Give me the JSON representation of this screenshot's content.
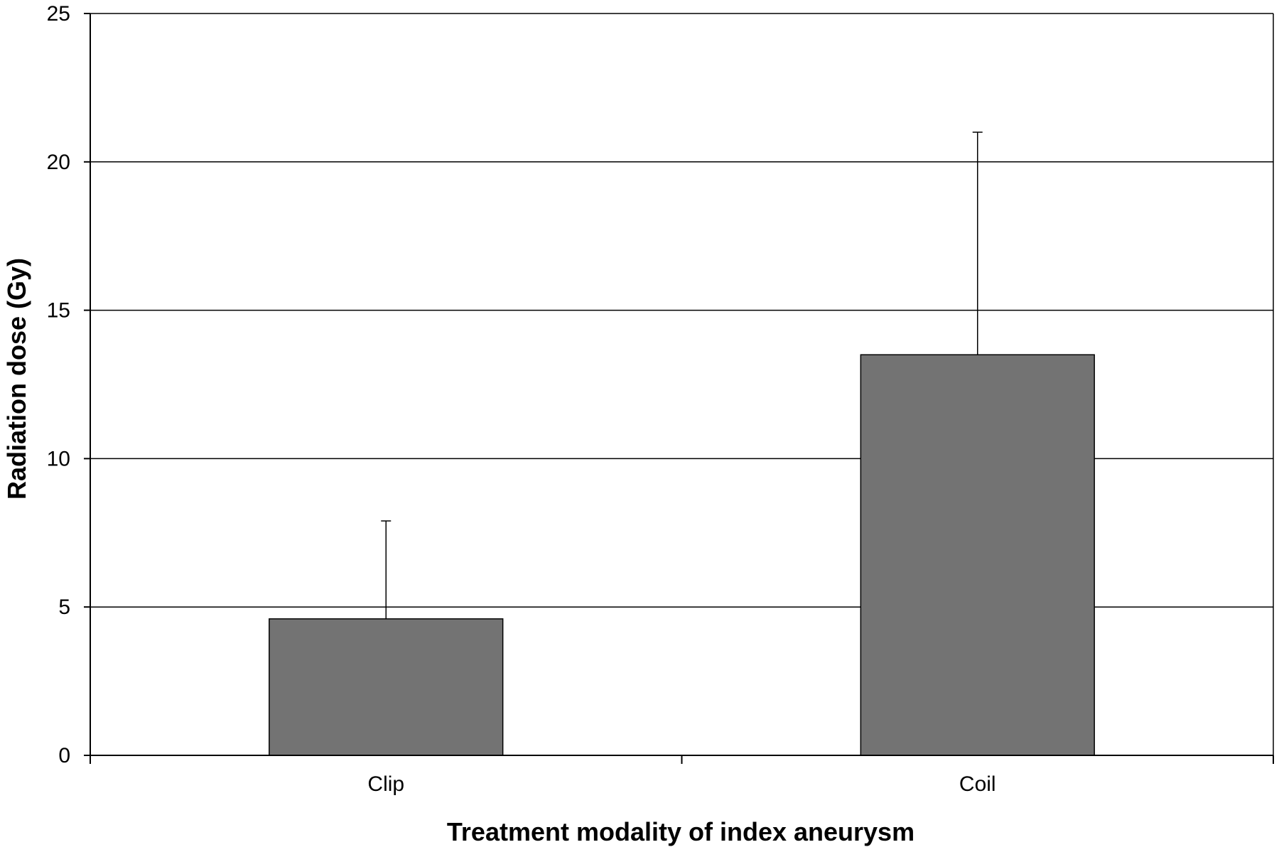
{
  "chart_data": {
    "type": "bar",
    "title": "",
    "xlabel": "Treatment modality of index aneurysm",
    "ylabel": "Radiation dose (Gy)",
    "categories": [
      "Clip",
      "Coil"
    ],
    "values": [
      4.6,
      13.5
    ],
    "error_upper": [
      7.9,
      21.0
    ],
    "ylim": [
      0,
      25
    ],
    "yticks": [
      0,
      5,
      10,
      15,
      20,
      25
    ],
    "ytick_labels": [
      "0",
      "5",
      "10",
      "15",
      "20",
      "25"
    ],
    "grid": true,
    "legend": "none",
    "colors": {
      "bar_fill": "#737373",
      "bar_stroke": "#000000",
      "grid": "#000000",
      "axis": "#000000",
      "background": "#ffffff"
    }
  }
}
